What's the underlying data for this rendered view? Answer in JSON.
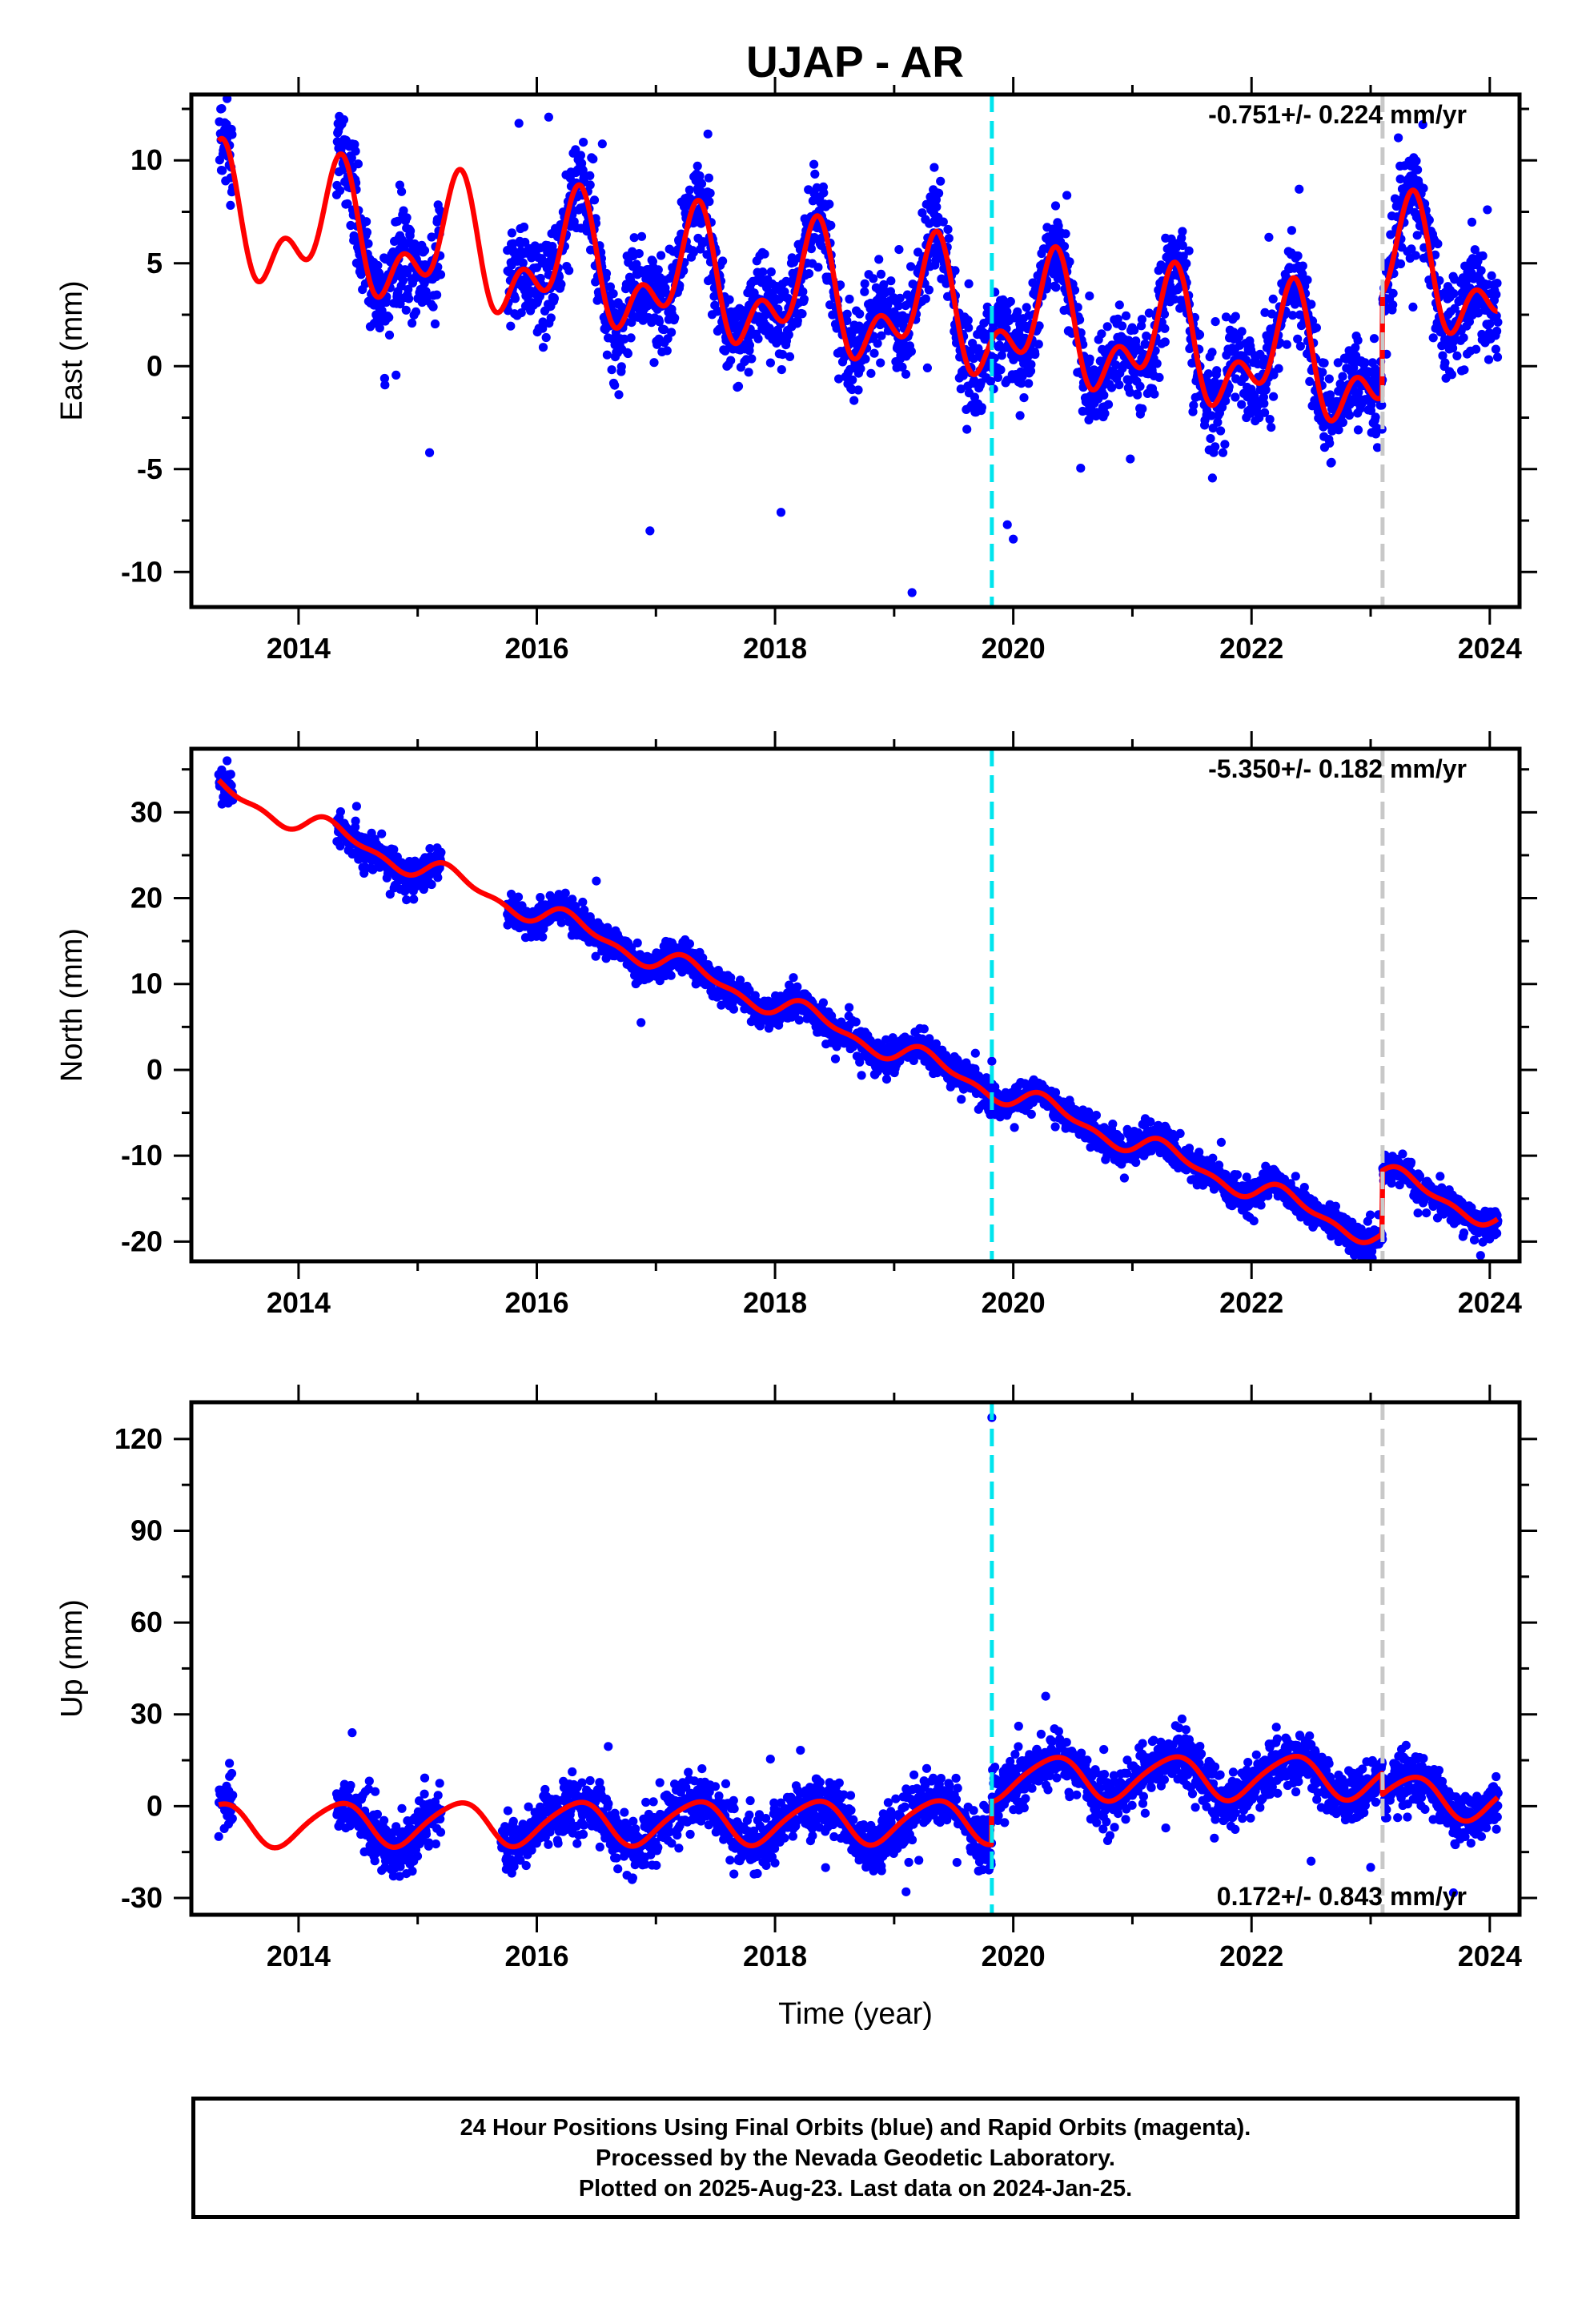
{
  "title": "UJAP - AR",
  "colors": {
    "points": "#0000ff",
    "model": "#ff0000",
    "equipment_change": "#00e5ee",
    "other_offset": "#c8c8c8",
    "frame": "#000000"
  },
  "footer": {
    "line1": "24 Hour Positions Using Final Orbits (blue) and Rapid Orbits (magenta).",
    "line2": "Processed by the Nevada Geodetic Laboratory.",
    "line3": "Plotted on 2025-Aug-23. Last data on 2024-Jan-25."
  },
  "chart_data": [
    {
      "type": "scatter",
      "name": "east",
      "ylabel": "East (mm)",
      "xlabel": "",
      "xlim": [
        2013.1,
        2024.25
      ],
      "ylim": [
        -11.7,
        13.2
      ],
      "xticks": [
        2014,
        2016,
        2018,
        2020,
        2022,
        2024
      ],
      "yticks": [
        -10,
        -5,
        0,
        5,
        10
      ],
      "rate": "-0.751+/- 0.224 mm/yr",
      "rate_position": "top-right",
      "offset_lines": {
        "equipment": 2019.82,
        "other": 2023.1
      },
      "data_segments": [
        [
          2013.33,
          2013.45
        ],
        [
          2014.32,
          2015.2
        ],
        [
          2015.75,
          2024.07
        ]
      ],
      "model": {
        "intercept": 7.1,
        "rate": -0.751,
        "t0": 2013.35,
        "seasonal": [
          {
            "amp": 2.35,
            "period": 1.0,
            "phase": 0.32
          },
          {
            "amp": 1.7,
            "period": 0.5,
            "phase": 0.37
          }
        ],
        "jumps": [
          {
            "t": 2019.82,
            "dy": 0
          },
          {
            "t": 2023.1,
            "dy": 5.0
          }
        ]
      },
      "scatter_sd": 1.1,
      "outliers": [
        [
          2013.4,
          13.0
        ],
        [
          2013.38,
          11.5
        ],
        [
          2015.85,
          11.8
        ],
        [
          2016.1,
          12.1
        ],
        [
          2016.55,
          10.8
        ],
        [
          2014.45,
          10.8
        ],
        [
          2016.95,
          -8.0
        ],
        [
          2019.15,
          -11.0
        ],
        [
          2020.0,
          -8.4
        ],
        [
          2020.45,
          8.3
        ],
        [
          2022.4,
          8.6
        ],
        [
          2023.98,
          7.6
        ],
        [
          2023.85,
          7.0
        ],
        [
          2014.85,
          8.8
        ],
        [
          2015.1,
          -4.2
        ],
        [
          2018.05,
          -7.1
        ],
        [
          2019.95,
          -7.7
        ]
      ]
    },
    {
      "type": "scatter",
      "name": "north",
      "ylabel": "North (mm)",
      "xlabel": "",
      "xlim": [
        2013.1,
        2024.25
      ],
      "ylim": [
        -22.3,
        37.4
      ],
      "xticks": [
        2014,
        2016,
        2018,
        2020,
        2022,
        2024
      ],
      "yticks": [
        -20,
        -10,
        0,
        10,
        20,
        30
      ],
      "rate": "-5.350+/- 0.182 mm/yr",
      "rate_position": "top-right",
      "offset_lines": {
        "equipment": 2019.82,
        "other": 2023.1
      },
      "data_segments": [
        [
          2013.33,
          2013.45
        ],
        [
          2014.32,
          2015.2
        ],
        [
          2015.75,
          2024.07
        ]
      ],
      "model": {
        "intercept": 32.5,
        "rate": -5.35,
        "t0": 2013.35,
        "seasonal": [
          {
            "amp": 1.2,
            "period": 1.0,
            "phase": 0.3
          },
          {
            "amp": 0.55,
            "period": 0.5,
            "phase": 0.2
          }
        ],
        "jumps": [
          {
            "t": 2023.1,
            "dy": 7.4
          }
        ]
      },
      "scatter_sd": 0.9,
      "outliers": [
        [
          2019.82,
          1.0
        ],
        [
          2013.4,
          36.0
        ],
        [
          2016.5,
          22.0
        ]
      ]
    },
    {
      "type": "scatter",
      "name": "up",
      "ylabel": "Up (mm)",
      "xlabel": "Time (year)",
      "xlim": [
        2013.1,
        2024.25
      ],
      "ylim": [
        -35.5,
        132
      ],
      "xticks": [
        2014,
        2016,
        2018,
        2020,
        2022,
        2024
      ],
      "yticks": [
        -30,
        0,
        30,
        60,
        90,
        120
      ],
      "rate": "0.172+/- 0.843 mm/yr",
      "rate_position": "bottom-right",
      "offset_lines": {
        "equipment": 2019.82,
        "other": 2023.1
      },
      "data_segments": [
        [
          2013.33,
          2013.45
        ],
        [
          2014.32,
          2015.2
        ],
        [
          2015.7,
          2024.07
        ]
      ],
      "model": {
        "intercept": -6.0,
        "rate": 0.172,
        "t0": 2013.35,
        "seasonal": [
          {
            "amp": 7.0,
            "period": 1.0,
            "phase": 0.33
          },
          {
            "amp": 1.0,
            "period": 0.5,
            "phase": 0.0
          }
        ],
        "jumps": [
          {
            "t": 2019.82,
            "dy": 14.0
          },
          {
            "t": 2023.1,
            "dy": -7.0
          }
        ]
      },
      "scatter_sd": 4.3,
      "outliers": [
        [
          2019.82,
          127.0
        ],
        [
          2014.45,
          24.0
        ],
        [
          2016.6,
          19.5
        ],
        [
          2013.42,
          14.0
        ],
        [
          2021.45,
          25.0
        ],
        [
          2022.5,
          -18.0
        ],
        [
          2023.0,
          -20.0
        ],
        [
          2019.1,
          -28.0
        ]
      ]
    }
  ]
}
